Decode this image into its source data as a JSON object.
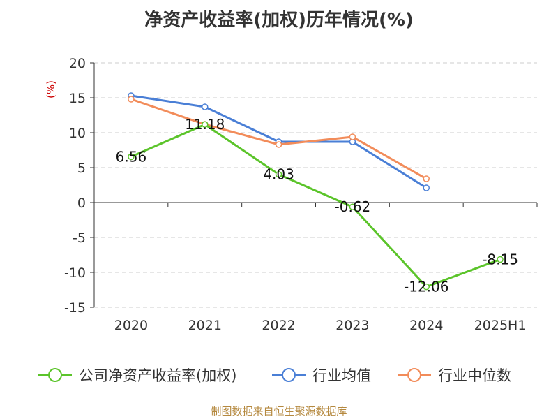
{
  "title": "净资产收益率(加权)历年情况(%)",
  "footer": "制图数据来自恒生聚源数据库",
  "colors": {
    "axis": "#333333",
    "grid": "#cccccc",
    "tick_text": "#333333",
    "unit": "#cc0000"
  },
  "chart_data": {
    "type": "line",
    "ylabel": "(%)",
    "ylim": [
      -15,
      20
    ],
    "yticks": [
      20,
      15,
      10,
      5,
      0,
      -5,
      -10,
      -15
    ],
    "categories": [
      "2020",
      "2021",
      "2022",
      "2023",
      "2024",
      "2025H1"
    ],
    "grid": true,
    "legend_position": "bottom",
    "series": [
      {
        "name": "公司净资产收益率(加权)",
        "color": "#5bc42a",
        "values": [
          6.56,
          11.18,
          4.03,
          -0.62,
          -12.06,
          -8.15
        ],
        "labels": [
          "6.56",
          "11.18",
          "4.03",
          "-0.62",
          "-12.06",
          "-8.15"
        ]
      },
      {
        "name": "行业均值",
        "color": "#4a7fd6",
        "values": [
          15.3,
          13.7,
          8.7,
          8.7,
          2.1,
          null
        ]
      },
      {
        "name": "行业中位数",
        "color": "#f28c5a",
        "values": [
          14.8,
          11.2,
          8.3,
          9.4,
          3.4,
          null
        ]
      }
    ]
  }
}
